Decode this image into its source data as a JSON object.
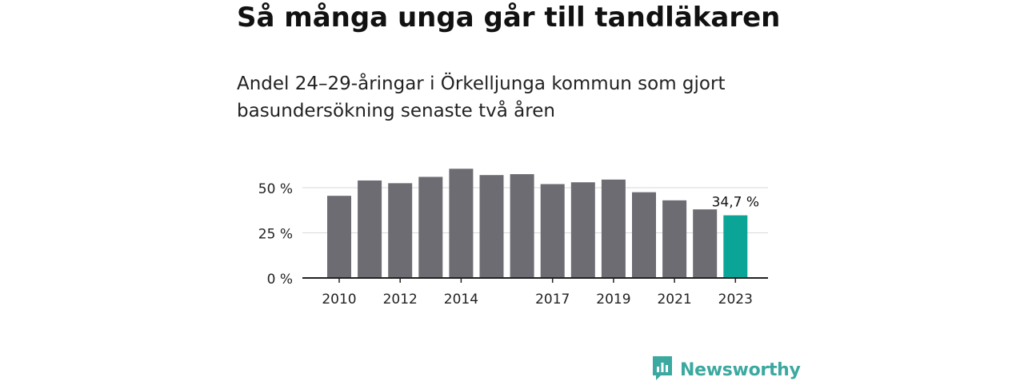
{
  "header": {
    "title": "Så många unga går till tandläkaren",
    "subtitle": "Andel 24–29-åringar i Örkelljunga kommun som gjort basundersökning senaste två åren"
  },
  "brand": {
    "name": "Newsworthy",
    "logo_icon": "newsworthy-chart-bubble-icon",
    "color": "#3ba9a0"
  },
  "chart_data": {
    "type": "bar",
    "x": [
      2010,
      2011,
      2012,
      2013,
      2014,
      2015,
      2016,
      2017,
      2018,
      2019,
      2020,
      2021,
      2022,
      2023
    ],
    "values": [
      45.5,
      54,
      52.5,
      56,
      60.5,
      57,
      57.5,
      52,
      53,
      54.5,
      47.5,
      43,
      38,
      34.7
    ],
    "x_tick_labels": [
      "2010",
      "2012",
      "2014",
      "2017",
      "2019",
      "2021",
      "2023"
    ],
    "y_ticks": [
      0,
      25,
      50
    ],
    "y_tick_labels": [
      "0 %",
      "25 %",
      "50 %"
    ],
    "ylim": [
      0,
      60
    ],
    "grid": true,
    "highlight": {
      "index": 13,
      "label": "34,7 %"
    },
    "colors": {
      "bar": "#6d6c73",
      "highlight": "#0ba597",
      "grid": "#d9d9d9",
      "axis": "#222222"
    }
  }
}
